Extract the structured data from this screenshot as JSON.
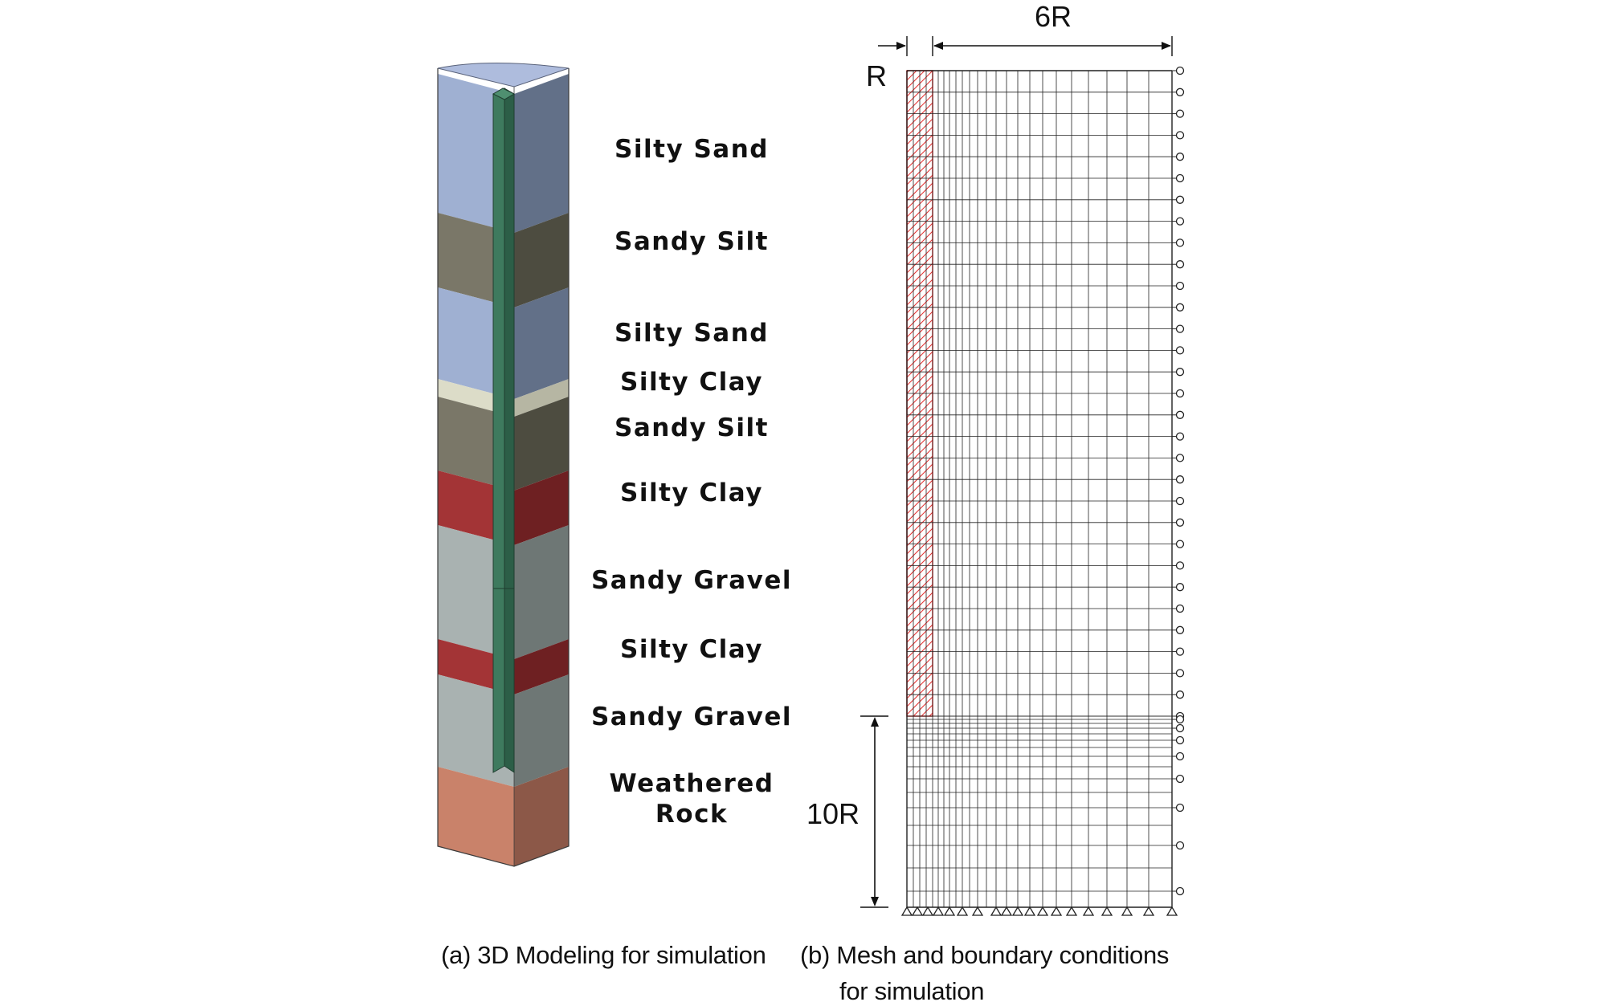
{
  "layers": [
    {
      "name": "Silty Sand",
      "front": "#9fb0d2",
      "side": "#627088"
    },
    {
      "name": "Sandy Silt",
      "front": "#7a7768",
      "side": "#4d4c40"
    },
    {
      "name": "Silty Sand",
      "front": "#9fb0d2",
      "side": "#627088"
    },
    {
      "name": "Silty Clay",
      "front": "#dcdcc8",
      "side": "#b6b6a3"
    },
    {
      "name": "Sandy Silt",
      "front": "#7a7768",
      "side": "#4d4c40"
    },
    {
      "name": "Silty Clay",
      "front": "#a33436",
      "side": "#6e2022"
    },
    {
      "name": "Sandy Gravel",
      "front": "#a9b2b1",
      "side": "#6e7775"
    },
    {
      "name": "Silty Clay",
      "front": "#a33436",
      "side": "#6e2022"
    },
    {
      "name": "Sandy Gravel",
      "front": "#a9b2b1",
      "side": "#6e7775"
    },
    {
      "name": "Weathered\nRock",
      "front": "#c9826a",
      "side": "#8c5848"
    }
  ],
  "colors": {
    "pile_front": "#3e7a5e",
    "pile_side": "#2c5e47",
    "pile_zone_hatch": "#e23030",
    "mesh_line": "#222222",
    "top_face": "#aebcdd"
  },
  "dimensions": {
    "r_label": "R",
    "six_r_label": "6R",
    "ten_r_label": "10R"
  },
  "captions": {
    "a": "(a) 3D Modeling for simulation",
    "b_line1": "(b) Mesh and boundary conditions",
    "b_line2": "for simulation"
  }
}
